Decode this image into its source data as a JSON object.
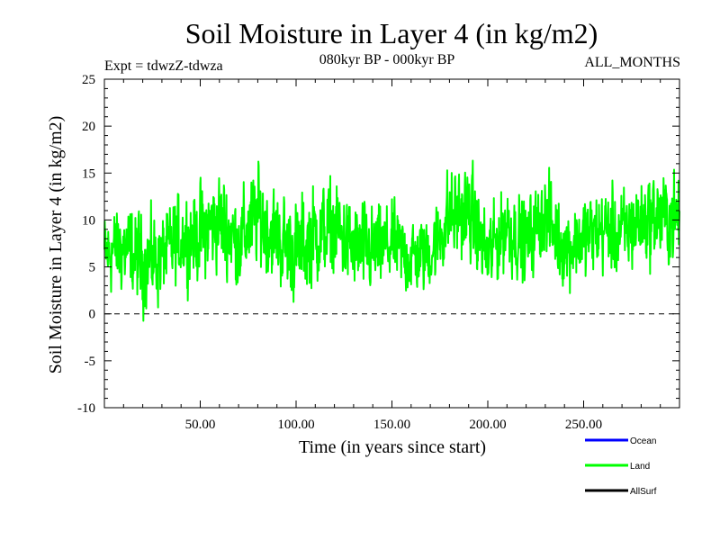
{
  "chart_data": {
    "type": "line",
    "title": "Soil Moisture in Layer 4 (in kg/m2)",
    "subtitle_left": "Expt = tdwzZ-tdwza",
    "subtitle_center": "080kyr BP - 000kyr BP",
    "subtitle_right": "ALL_MONTHS",
    "xlabel": "Time (in years since start)",
    "ylabel": "Soil Moisture in Layer 4 (in kg/m2)",
    "xlim": [
      0,
      300
    ],
    "ylim": [
      -10,
      25
    ],
    "x_ticks": [
      50,
      100,
      150,
      200,
      250
    ],
    "x_tick_labels": [
      "50.00",
      "100.00",
      "150.00",
      "200.00",
      "250.00"
    ],
    "y_ticks": [
      -10,
      -5,
      0,
      5,
      10,
      15,
      20,
      25
    ],
    "y_tick_labels": [
      "-10",
      "-5",
      "0",
      "5",
      "10",
      "15",
      "20",
      "25"
    ],
    "zero_line": true,
    "series": [
      {
        "name": "Land",
        "color": "#00ff00",
        "x": [
          0,
          10,
          20,
          30,
          40,
          50,
          60,
          70,
          80,
          90,
          100,
          110,
          120,
          130,
          140,
          150,
          160,
          170,
          180,
          190,
          200,
          210,
          220,
          230,
          240,
          250,
          260,
          270,
          280,
          290,
          300
        ],
        "values": [
          6.5,
          7.0,
          5.5,
          6.0,
          8.0,
          8.5,
          10.0,
          7.5,
          10.5,
          8.0,
          6.5,
          8.5,
          9.0,
          7.0,
          6.5,
          7.5,
          6.0,
          6.5,
          10.5,
          11.0,
          6.0,
          9.5,
          7.5,
          10.5,
          7.0,
          8.0,
          9.0,
          8.5,
          10.0,
          10.5,
          10.0
        ],
        "amplitude": [
          6.5,
          7.0,
          7.5,
          7.0,
          7.0,
          7.5,
          8.0,
          7.5,
          8.0,
          7.5,
          8.0,
          8.0,
          7.5,
          7.5,
          7.0,
          6.5,
          6.5,
          6.0,
          7.5,
          7.5,
          7.0,
          7.0,
          6.5,
          7.0,
          6.5,
          7.0,
          6.5,
          7.0,
          7.0,
          7.5,
          7.0
        ]
      },
      {
        "name": "Ocean",
        "color": "#0000ff",
        "x": [],
        "values": []
      },
      {
        "name": "AllSurf",
        "color": "#000000",
        "x": [],
        "values": []
      }
    ],
    "legend": {
      "placement": "bottom-right",
      "entries": [
        {
          "label": "Ocean",
          "color": "#0000ff"
        },
        {
          "label": "Land",
          "color": "#00ff00"
        },
        {
          "label": "AllSurf",
          "color": "#000000"
        }
      ]
    },
    "grid": false
  }
}
